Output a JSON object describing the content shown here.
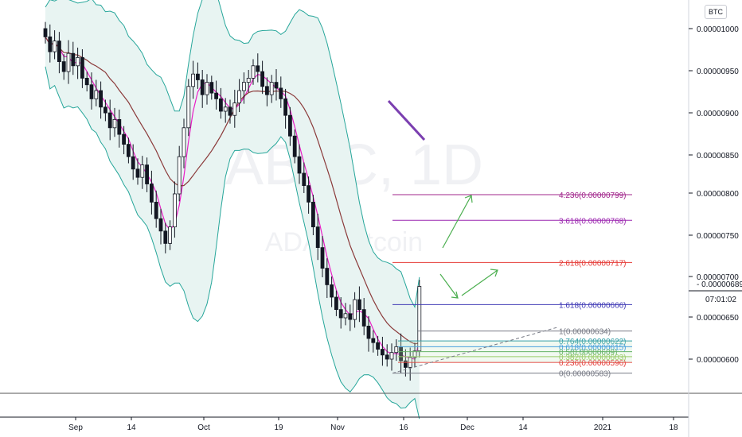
{
  "currency_button": "BTC",
  "watermark": {
    "symbol": "ADABTC, 1D",
    "description": "ADA / Bitcoin"
  },
  "price_axis": {
    "ticks": [
      "0.00001000",
      "0.00000950",
      "0.00000900",
      "0.00000850",
      "0.00000800",
      "0.00000750",
      "0.00000700",
      "0.00000650",
      "0.00000600"
    ],
    "last_price": "0.00000689",
    "countdown": "07:01:02"
  },
  "time_axis": {
    "labels": [
      "Sep",
      "14",
      "Oct",
      "19",
      "Nov",
      "16",
      "Dec",
      "14",
      "2021",
      "18"
    ]
  },
  "fib_levels": [
    {
      "label": "4.236(0.00000799)",
      "color": "#a1258b"
    },
    {
      "label": "3.618(0.00000768)",
      "color": "#9c27b0"
    },
    {
      "label": "2.618(0.00000717)",
      "color": "#e53935"
    },
    {
      "label": "1.618(0.00000666)",
      "color": "#3f39b5"
    },
    {
      "label": "1(0.00000634)",
      "color": "#787b86"
    },
    {
      "label": "0.764(0.00000622)",
      "color": "#2196a0"
    },
    {
      "label": "0.618(0.00000615)",
      "color": "#1e88e5"
    },
    {
      "label": "0.5(0.00000609)",
      "color": "#43a047"
    },
    {
      "label": "0.382(0.00000603)",
      "color": "#8bc34a"
    },
    {
      "label": "0.236(0.00000596)",
      "color": "#e53935"
    },
    {
      "label": "0(0.00000583)",
      "color": "#787b86"
    }
  ],
  "colors": {
    "up": "#ffffff",
    "down": "#131722",
    "bb": "#26a69a",
    "bb_fill": "#e8f4f2",
    "ma_fast": "#e91ec6",
    "ma_slow": "#8b3a3a",
    "arrows": "#4caf50",
    "trend": "#7b3fb0"
  }
}
